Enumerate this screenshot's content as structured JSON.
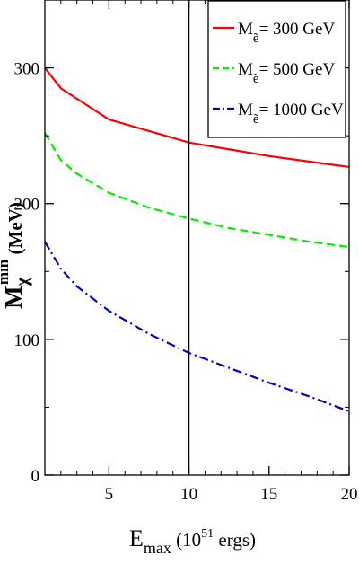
{
  "chart_data": {
    "type": "line",
    "xlim": [
      1,
      20
    ],
    "ylim": [
      0,
      350
    ],
    "x_ticks": [
      5,
      10,
      15,
      20
    ],
    "y_ticks": [
      0,
      100,
      200,
      300
    ],
    "x_minor_ticks": [
      2,
      3,
      4,
      6,
      7,
      8,
      9,
      11,
      12,
      13,
      14,
      16,
      17,
      18,
      19
    ],
    "y_minor_ticks": [
      50,
      150,
      250
    ],
    "grid": false,
    "legend_position": "top-right",
    "vertical_line_x": 10,
    "xlabel": {
      "main": "E",
      "sub": "max",
      "open": " (10",
      "sup": "51",
      "close": " ergs)"
    },
    "ylabel": {
      "main": "M",
      "sub": "χ",
      "sup": "min",
      "unit": " (MeV)"
    },
    "series": [
      {
        "name_main": "M",
        "name_sub": "ẽ",
        "name_rest": "=   300 GeV",
        "color": "#ff0000",
        "dash": "solid",
        "x": [
          1,
          2,
          5,
          10,
          12.5,
          15,
          17.5,
          20
        ],
        "y": [
          300,
          285,
          262,
          245,
          240,
          235,
          231,
          227
        ]
      },
      {
        "name_main": "M",
        "name_sub": "ẽ",
        "name_rest": "=   500 GeV",
        "color": "#00ee00",
        "dash": "dashed",
        "x": [
          1,
          2,
          3,
          5,
          7.5,
          10,
          12.5,
          15,
          17.5,
          20
        ],
        "y": [
          252,
          232,
          222,
          208,
          197,
          189,
          182,
          177,
          172,
          168
        ]
      },
      {
        "name_main": "M",
        "name_sub": "ẽ",
        "name_rest": "= 1000 GeV",
        "color": "#0000cc",
        "dash": "dashdot",
        "x": [
          1,
          2,
          3,
          5,
          7.5,
          10,
          12.5,
          15,
          17.5,
          20
        ],
        "y": [
          172,
          152,
          139,
          121,
          104,
          90,
          79,
          68,
          58,
          47
        ]
      }
    ]
  }
}
